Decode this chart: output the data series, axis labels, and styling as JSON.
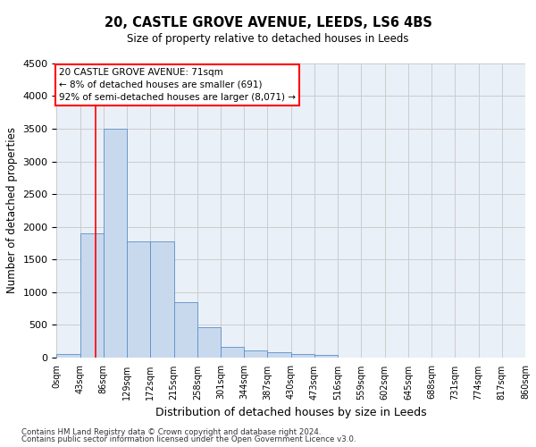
{
  "title1": "20, CASTLE GROVE AVENUE, LEEDS, LS6 4BS",
  "title2": "Size of property relative to detached houses in Leeds",
  "xlabel": "Distribution of detached houses by size in Leeds",
  "ylabel": "Number of detached properties",
  "bar_values": [
    50,
    1900,
    3500,
    1780,
    1780,
    840,
    460,
    155,
    100,
    75,
    55,
    40,
    0,
    0,
    0,
    0,
    0,
    0,
    0,
    0
  ],
  "bin_edges": [
    0,
    43,
    86,
    129,
    172,
    215,
    258,
    301,
    344,
    387,
    430,
    473,
    516,
    559,
    602,
    645,
    688,
    731,
    774,
    817,
    860
  ],
  "bar_color": "#c9d9ed",
  "bar_edge_color": "#5b8fc9",
  "grid_color": "#cccccc",
  "background_color": "#eaf0f8",
  "red_line_x": 71,
  "ylim": [
    0,
    4500
  ],
  "yticks": [
    0,
    500,
    1000,
    1500,
    2000,
    2500,
    3000,
    3500,
    4000,
    4500
  ],
  "annotation_text": "20 CASTLE GROVE AVENUE: 71sqm\n← 8% of detached houses are smaller (691)\n92% of semi-detached houses are larger (8,071) →",
  "footnote1": "Contains HM Land Registry data © Crown copyright and database right 2024.",
  "footnote2": "Contains public sector information licensed under the Open Government Licence v3.0."
}
